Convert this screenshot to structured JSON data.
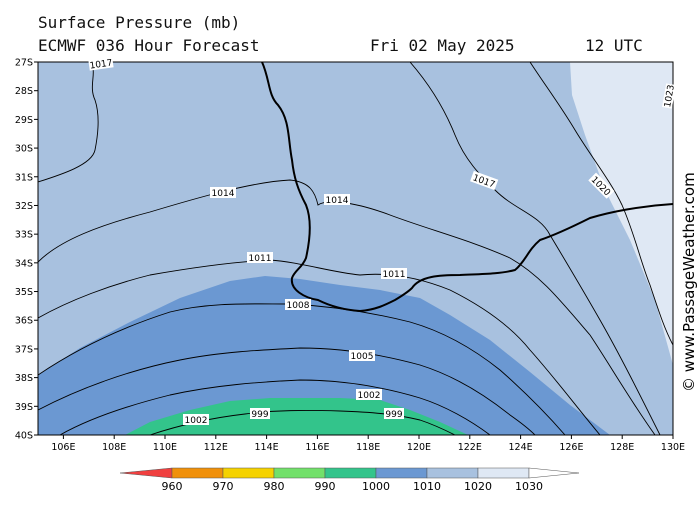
{
  "header": {
    "title": "Surface Pressure (mb)",
    "model_line": "ECMWF 036 Hour Forecast",
    "date": "Fri 02 May 2025",
    "time": "12 UTC"
  },
  "map": {
    "lat_labels": [
      "27S",
      "28S",
      "29S",
      "30S",
      "31S",
      "32S",
      "33S",
      "34S",
      "35S",
      "36S",
      "37S",
      "38S",
      "39S",
      "40S"
    ],
    "lon_labels": [
      "106E",
      "108E",
      "110E",
      "112E",
      "114E",
      "116E",
      "118E",
      "120E",
      "122E",
      "124E",
      "126E",
      "128E",
      "130E"
    ],
    "isobar_labels": {
      "i1017_top": "1017",
      "i1014_a": "1014",
      "i1014_b": "1014",
      "i1017": "1017",
      "i1020": "1020",
      "i1023": "1023",
      "i1011_a": "1011",
      "i1011_b": "1011",
      "i1008": "1008",
      "i1005": "1005",
      "i1002_a": "1002",
      "i1002_b": "1002",
      "i999_a": "999",
      "i999_b": "999"
    },
    "fill_colors": {
      "ocean_light": "#a8c1df",
      "band_1010": "#6b98d2",
      "band_990": "#33c48b",
      "high_1020": "#dfe8f4",
      "coast": "#000000"
    }
  },
  "legend": {
    "labels": [
      "960",
      "970",
      "980",
      "990",
      "1000",
      "1010",
      "1020",
      "1030"
    ],
    "colors": [
      "#f04040",
      "#f0900a",
      "#f5d200",
      "#72e06a",
      "#33c48b",
      "#6b98d2",
      "#a8c1df",
      "#dfe8f4"
    ]
  },
  "credit": "© www.PassageWeather.com"
}
